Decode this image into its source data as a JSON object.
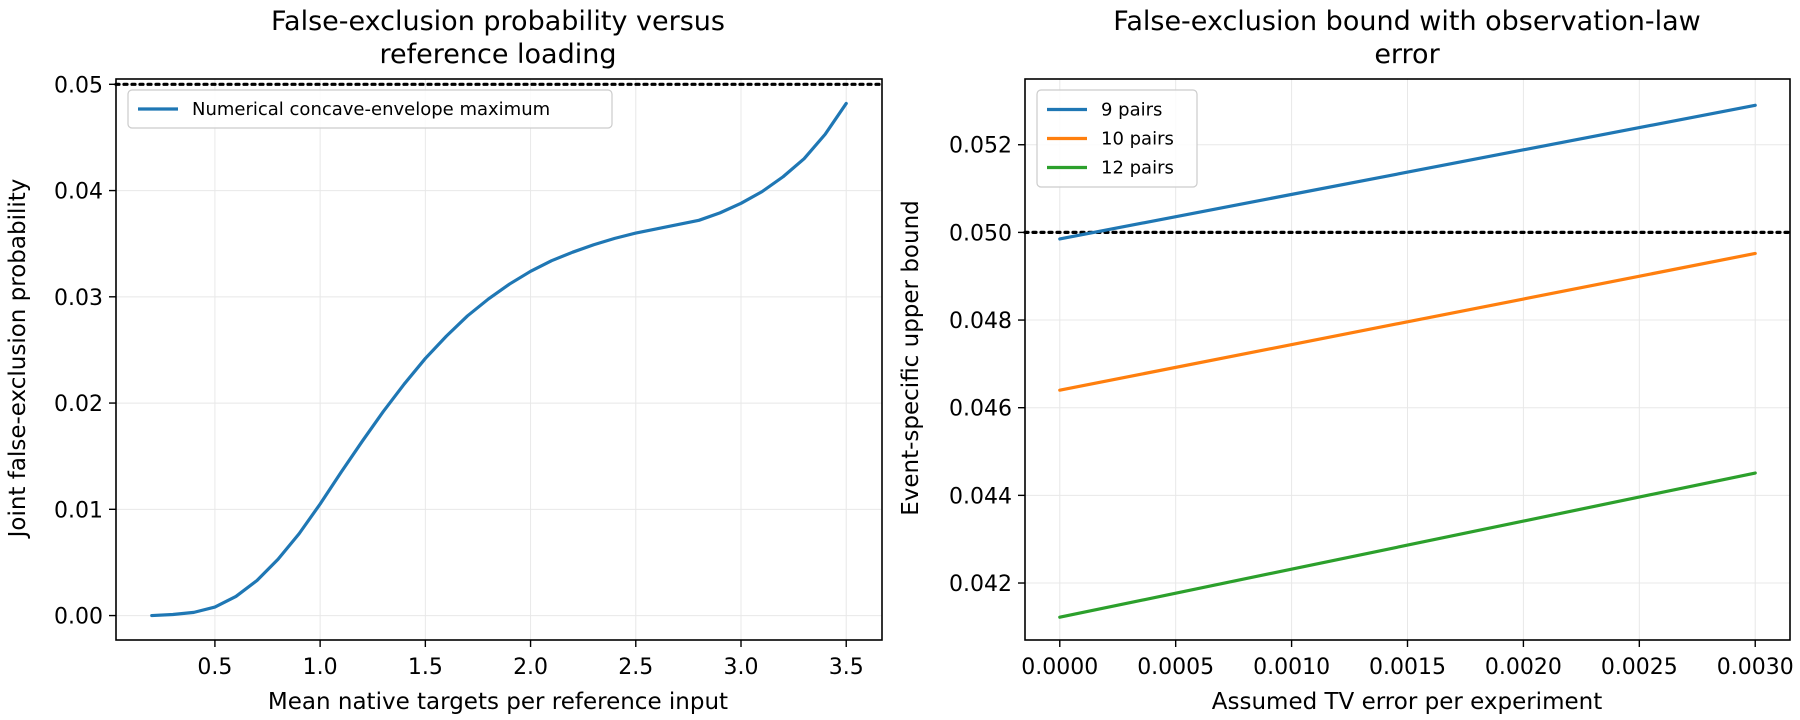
{
  "chart_data": [
    {
      "type": "line",
      "title_lines": [
        "False-exclusion probability versus",
        "reference loading"
      ],
      "xlabel": "Mean native targets per reference input",
      "ylabel": "Joint false-exclusion probability",
      "xlim": [
        0.03,
        3.67
      ],
      "ylim": [
        -0.0023,
        0.0505
      ],
      "xticks": [
        0.5,
        1.0,
        1.5,
        2.0,
        2.5,
        3.0,
        3.5
      ],
      "xtick_labels": [
        "0.5",
        "1.0",
        "1.5",
        "2.0",
        "2.5",
        "3.0",
        "3.5"
      ],
      "yticks": [
        0.0,
        0.01,
        0.02,
        0.03,
        0.04,
        0.05
      ],
      "ytick_labels": [
        "0.00",
        "0.01",
        "0.02",
        "0.03",
        "0.04",
        "0.05"
      ],
      "grid": true,
      "legend_position": "upper-left",
      "reference_line": {
        "y": 0.05,
        "style": "dotted",
        "color": "#000000"
      },
      "series": [
        {
          "name": "Numerical concave-envelope maximum",
          "color": "#1f77b4",
          "x": [
            0.2,
            0.3,
            0.4,
            0.5,
            0.6,
            0.7,
            0.8,
            0.9,
            1.0,
            1.1,
            1.2,
            1.3,
            1.4,
            1.5,
            1.6,
            1.7,
            1.8,
            1.9,
            2.0,
            2.1,
            2.2,
            2.3,
            2.4,
            2.5,
            2.6,
            2.7,
            2.8,
            2.9,
            3.0,
            3.1,
            3.2,
            3.3,
            3.4,
            3.5
          ],
          "y": [
            0.0,
            0.0001,
            0.0003,
            0.0008,
            0.0018,
            0.0033,
            0.0053,
            0.0077,
            0.0105,
            0.0135,
            0.0164,
            0.0192,
            0.0218,
            0.0242,
            0.0263,
            0.0282,
            0.0298,
            0.0312,
            0.0324,
            0.0334,
            0.0342,
            0.0349,
            0.0355,
            0.036,
            0.0364,
            0.0368,
            0.0372,
            0.0379,
            0.0388,
            0.0399,
            0.0413,
            0.043,
            0.0453,
            0.0482
          ]
        }
      ]
    },
    {
      "type": "line",
      "title_lines": [
        "False-exclusion bound with observation-law",
        "error"
      ],
      "xlabel": "Assumed TV error per experiment",
      "ylabel": "Event-specific upper bound",
      "xlim": [
        -0.00015,
        0.00315
      ],
      "ylim": [
        0.0407,
        0.0535
      ],
      "xticks": [
        0.0,
        0.0005,
        0.001,
        0.0015,
        0.002,
        0.0025,
        0.003
      ],
      "xtick_labels": [
        "0.0000",
        "0.0005",
        "0.0010",
        "0.0015",
        "0.0020",
        "0.0025",
        "0.0030"
      ],
      "yticks": [
        0.042,
        0.044,
        0.046,
        0.048,
        0.05,
        0.052
      ],
      "ytick_labels": [
        "0.042",
        "0.044",
        "0.046",
        "0.048",
        "0.050",
        "0.052"
      ],
      "grid": true,
      "legend_position": "upper-left",
      "reference_line": {
        "y": 0.05,
        "style": "dotted",
        "color": "#000000"
      },
      "series": [
        {
          "name": "9 pairs",
          "color": "#1f77b4",
          "x": [
            0.0,
            0.003
          ],
          "y": [
            0.04985,
            0.0529
          ]
        },
        {
          "name": "10 pairs",
          "color": "#ff7f0e",
          "x": [
            0.0,
            0.003
          ],
          "y": [
            0.0464,
            0.04952
          ]
        },
        {
          "name": "12 pairs",
          "color": "#2ca02c",
          "x": [
            0.0,
            0.003
          ],
          "y": [
            0.04122,
            0.04451
          ]
        }
      ]
    }
  ]
}
